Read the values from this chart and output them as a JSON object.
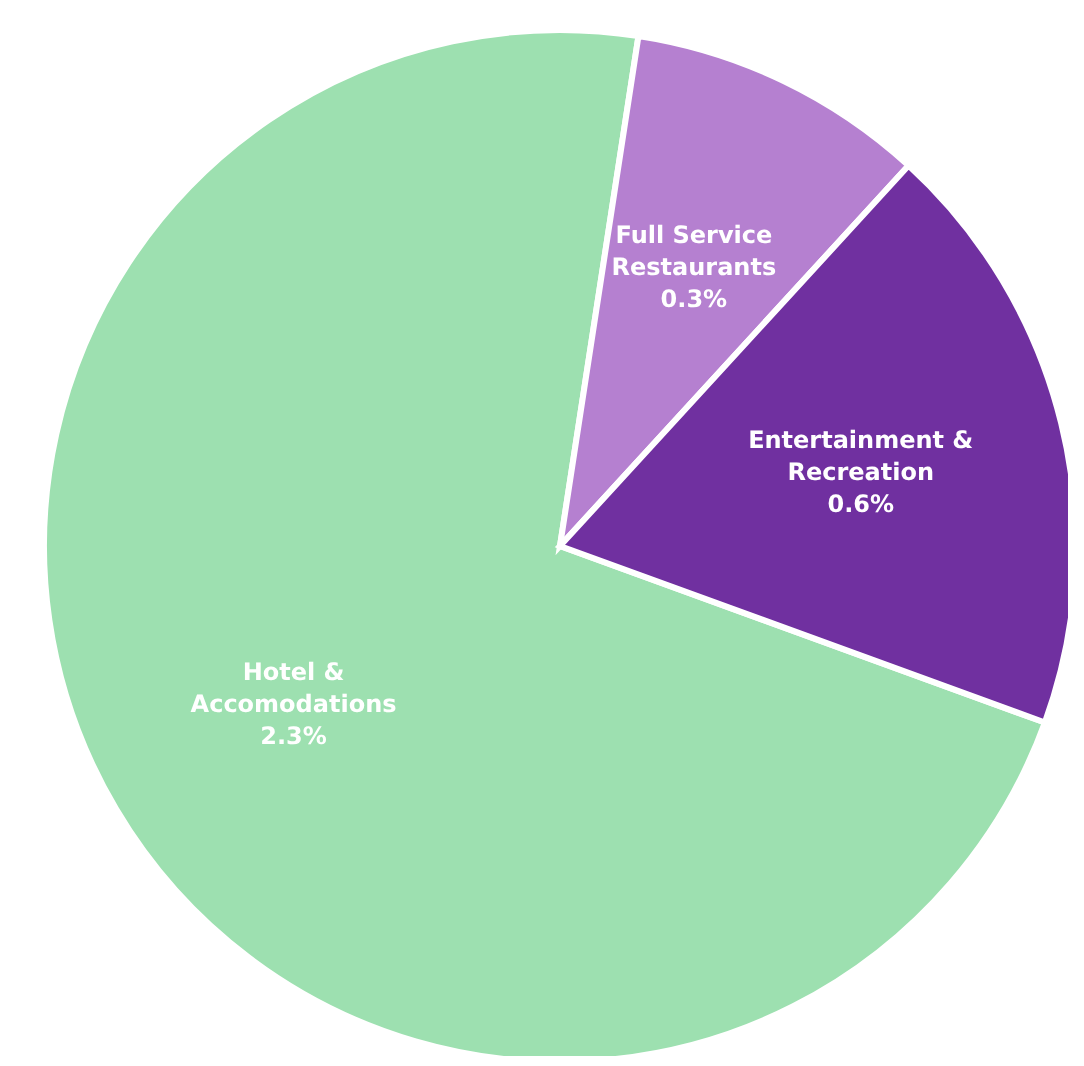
{
  "chart_data": {
    "type": "pie",
    "categories": [
      "Hotel & Accomodations",
      "Full Service Restaurants",
      "Entertainment & Recreation"
    ],
    "values": [
      2.3,
      0.3,
      0.6
    ],
    "colors": [
      "#9de0b0",
      "#b580d0",
      "#7030a0"
    ],
    "value_labels": [
      "2.3%",
      "0.3%",
      "0.6%"
    ]
  }
}
